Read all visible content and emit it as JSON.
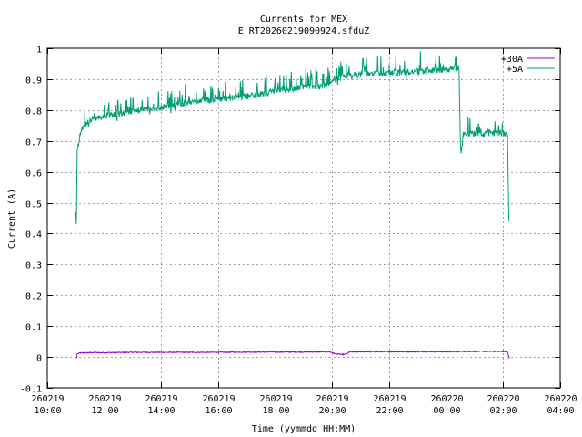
{
  "chart_data": {
    "type": "line",
    "title": "Currents for MEX",
    "subtitle": "E_RT20260219090924.sfduZ",
    "xlabel": "Time (yymmdd HH:MM)",
    "ylabel": "Current (A)",
    "xlim_hours": [
      10,
      28
    ],
    "ylim": [
      -0.1,
      1
    ],
    "y_ticks": [
      -0.1,
      0,
      0.1,
      0.2,
      0.3,
      0.4,
      0.5,
      0.6,
      0.7,
      0.8,
      0.9,
      1
    ],
    "y_tick_labels": [
      "-0.1",
      "0",
      "0.1",
      "0.2",
      "0.3",
      "0.4",
      "0.5",
      "0.6",
      "0.7",
      "0.8",
      "0.9",
      "1"
    ],
    "x_ticks": [
      {
        "date": "260219",
        "time": "10:00",
        "hour": 10
      },
      {
        "date": "260219",
        "time": "12:00",
        "hour": 12
      },
      {
        "date": "260219",
        "time": "14:00",
        "hour": 14
      },
      {
        "date": "260219",
        "time": "16:00",
        "hour": 16
      },
      {
        "date": "260219",
        "time": "18:00",
        "hour": 18
      },
      {
        "date": "260219",
        "time": "20:00",
        "hour": 20
      },
      {
        "date": "260219",
        "time": "22:00",
        "hour": 22
      },
      {
        "date": "260220",
        "time": "00:00",
        "hour": 24
      },
      {
        "date": "260220",
        "time": "02:00",
        "hour": 26
      },
      {
        "date": "260220",
        "time": "04:00",
        "hour": 28
      }
    ],
    "grid": true,
    "legend_position": "top-right",
    "series": [
      {
        "name": "+30A",
        "color": "#9400d3",
        "points": [
          [
            11.02,
            -0.005
          ],
          [
            11.05,
            0.01
          ],
          [
            11.15,
            0.013
          ],
          [
            11.5,
            0.014
          ],
          [
            12,
            0.014
          ],
          [
            13,
            0.015
          ],
          [
            14,
            0.015
          ],
          [
            15,
            0.015
          ],
          [
            16,
            0.015
          ],
          [
            17,
            0.016
          ],
          [
            18,
            0.016
          ],
          [
            19,
            0.016
          ],
          [
            19.9,
            0.017
          ],
          [
            20.05,
            0.012
          ],
          [
            20.3,
            0.008
          ],
          [
            20.5,
            0.009
          ],
          [
            20.6,
            0.016
          ],
          [
            21,
            0.017
          ],
          [
            22,
            0.017
          ],
          [
            23,
            0.017
          ],
          [
            24,
            0.017
          ],
          [
            24.45,
            0.017
          ],
          [
            24.5,
            0.018
          ],
          [
            25,
            0.018
          ],
          [
            25.5,
            0.018
          ],
          [
            26,
            0.018
          ],
          [
            26.15,
            0.015
          ],
          [
            26.22,
            -0.005
          ]
        ]
      },
      {
        "name": "+5A",
        "color": "#009e73",
        "points": [
          [
            11.0,
            0.47
          ],
          [
            11.02,
            0.43
          ],
          [
            11.05,
            0.67
          ],
          [
            11.15,
            0.72
          ],
          [
            11.3,
            0.75
          ],
          [
            11.5,
            0.77
          ],
          [
            12,
            0.78
          ],
          [
            13,
            0.795
          ],
          [
            14,
            0.81
          ],
          [
            15,
            0.825
          ],
          [
            16,
            0.835
          ],
          [
            17,
            0.845
          ],
          [
            18,
            0.86
          ],
          [
            19,
            0.875
          ],
          [
            19.9,
            0.88
          ],
          [
            20.05,
            0.9
          ],
          [
            20.5,
            0.91
          ],
          [
            21,
            0.915
          ],
          [
            22,
            0.92
          ],
          [
            23,
            0.925
          ],
          [
            24,
            0.93
          ],
          [
            24.45,
            0.935
          ],
          [
            24.5,
            0.69
          ],
          [
            24.52,
            0.66
          ],
          [
            24.6,
            0.72
          ],
          [
            25,
            0.725
          ],
          [
            25.5,
            0.725
          ],
          [
            26,
            0.725
          ],
          [
            26.15,
            0.72
          ],
          [
            26.2,
            0.44
          ]
        ]
      }
    ]
  }
}
